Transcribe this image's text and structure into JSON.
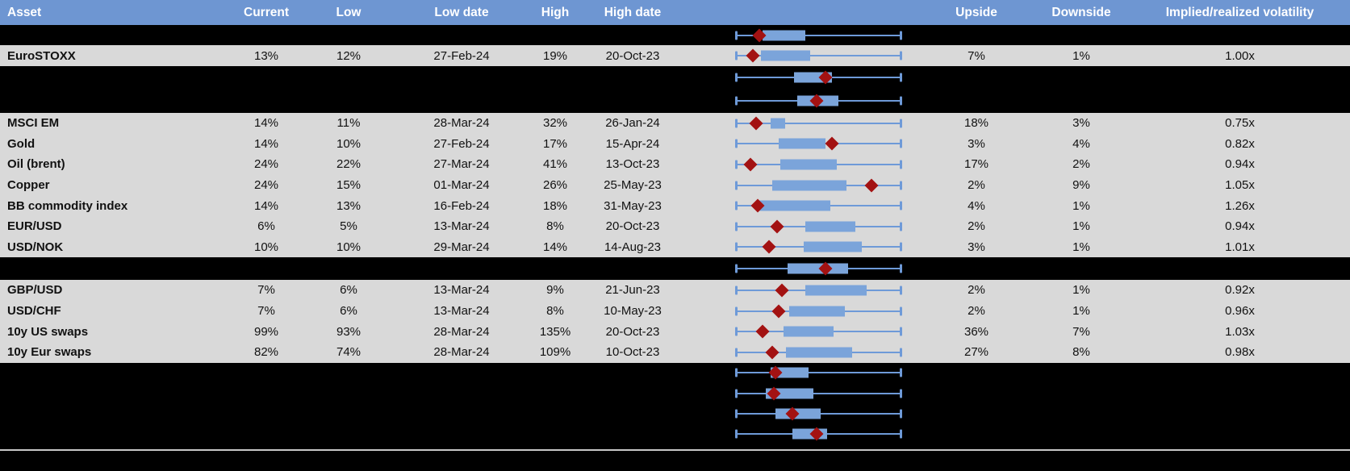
{
  "table": {
    "columns": [
      "Asset",
      "Current",
      "Low",
      "Low date",
      "High",
      "High date",
      "",
      "Upside",
      "Downside",
      "Implied/realized volatility"
    ],
    "box_plot_scale": "normalized 0-1 across whisker span (1y min-max range), diamond = current level",
    "rows": [
      {
        "kind": "spacer",
        "box": {
          "lo": 0.16,
          "hi": 0.42,
          "marker": 0.14
        }
      },
      {
        "kind": "data",
        "asset": "EuroSTOXX",
        "current": "13%",
        "low": "12%",
        "low_date": "27-Feb-24",
        "high": "19%",
        "high_date": "20-Oct-23",
        "upside": "7%",
        "downside": "1%",
        "impl_real": "1.00x",
        "box": {
          "lo": 0.15,
          "hi": 0.45,
          "marker": 0.1
        }
      },
      {
        "kind": "spacer",
        "box": {
          "lo": 0.35,
          "hi": 0.58,
          "marker": 0.54
        }
      },
      {
        "kind": "spacer",
        "box": {
          "lo": 0.37,
          "hi": 0.62,
          "marker": 0.49
        }
      },
      {
        "kind": "data",
        "asset": "MSCI EM",
        "current": "14%",
        "low": "11%",
        "low_date": "28-Mar-24",
        "high": "32%",
        "high_date": "26-Jan-24",
        "upside": "18%",
        "downside": "3%",
        "impl_real": "0.75x",
        "box": {
          "lo": 0.21,
          "hi": 0.3,
          "marker": 0.12
        }
      },
      {
        "kind": "data",
        "asset": "Gold",
        "current": "14%",
        "low": "10%",
        "low_date": "27-Feb-24",
        "high": "17%",
        "high_date": "15-Apr-24",
        "upside": "3%",
        "downside": "4%",
        "impl_real": "0.82x",
        "box": {
          "lo": 0.26,
          "hi": 0.54,
          "marker": 0.58
        }
      },
      {
        "kind": "data",
        "asset": "Oil (brent)",
        "current": "24%",
        "low": "22%",
        "low_date": "27-Mar-24",
        "high": "41%",
        "high_date": "13-Oct-23",
        "upside": "17%",
        "downside": "2%",
        "impl_real": "0.94x",
        "box": {
          "lo": 0.27,
          "hi": 0.61,
          "marker": 0.09
        }
      },
      {
        "kind": "data",
        "asset": "Copper",
        "current": "24%",
        "low": "15%",
        "low_date": "01-Mar-24",
        "high": "26%",
        "high_date": "25-May-23",
        "upside": "2%",
        "downside": "9%",
        "impl_real": "1.05x",
        "box": {
          "lo": 0.22,
          "hi": 0.67,
          "marker": 0.82
        }
      },
      {
        "kind": "data",
        "asset": "BB commodity index",
        "current": "14%",
        "low": "13%",
        "low_date": "16-Feb-24",
        "high": "18%",
        "high_date": "31-May-23",
        "upside": "4%",
        "downside": "1%",
        "impl_real": "1.26x",
        "box": {
          "lo": 0.14,
          "hi": 0.57,
          "marker": 0.13
        }
      },
      {
        "kind": "data",
        "asset": "EUR/USD",
        "current": "6%",
        "low": "5%",
        "low_date": "13-Mar-24",
        "high": "8%",
        "high_date": "20-Oct-23",
        "upside": "2%",
        "downside": "1%",
        "impl_real": "0.94x",
        "box": {
          "lo": 0.42,
          "hi": 0.72,
          "marker": 0.25
        }
      },
      {
        "kind": "data",
        "asset": "USD/NOK",
        "current": "10%",
        "low": "10%",
        "low_date": "29-Mar-24",
        "high": "14%",
        "high_date": "14-Aug-23",
        "upside": "3%",
        "downside": "1%",
        "impl_real": "1.01x",
        "box": {
          "lo": 0.41,
          "hi": 0.76,
          "marker": 0.2
        }
      },
      {
        "kind": "spacer",
        "box": {
          "lo": 0.31,
          "hi": 0.68,
          "marker": 0.54
        }
      },
      {
        "kind": "data",
        "asset": "GBP/USD",
        "current": "7%",
        "low": "6%",
        "low_date": "13-Mar-24",
        "high": "9%",
        "high_date": "21-Jun-23",
        "upside": "2%",
        "downside": "1%",
        "impl_real": "0.92x",
        "box": {
          "lo": 0.42,
          "hi": 0.79,
          "marker": 0.28
        }
      },
      {
        "kind": "data",
        "asset": "USD/CHF",
        "current": "7%",
        "low": "6%",
        "low_date": "13-Mar-24",
        "high": "8%",
        "high_date": "10-May-23",
        "upside": "2%",
        "downside": "1%",
        "impl_real": "0.96x",
        "box": {
          "lo": 0.32,
          "hi": 0.66,
          "marker": 0.26
        }
      },
      {
        "kind": "data",
        "asset": "10y US swaps",
        "current": "99%",
        "low": "93%",
        "low_date": "28-Mar-24",
        "high": "135%",
        "high_date": "20-Oct-23",
        "upside": "36%",
        "downside": "7%",
        "impl_real": "1.03x",
        "box": {
          "lo": 0.29,
          "hi": 0.59,
          "marker": 0.16
        }
      },
      {
        "kind": "data",
        "asset": "10y Eur swaps",
        "current": "82%",
        "low": "74%",
        "low_date": "28-Mar-24",
        "high": "109%",
        "high_date": "10-Oct-23",
        "upside": "27%",
        "downside": "8%",
        "impl_real": "0.98x",
        "box": {
          "lo": 0.3,
          "hi": 0.7,
          "marker": 0.22
        }
      },
      {
        "kind": "spacer",
        "box": {
          "lo": 0.21,
          "hi": 0.44,
          "marker": 0.24
        }
      },
      {
        "kind": "spacer",
        "box": {
          "lo": 0.18,
          "hi": 0.47,
          "marker": 0.23
        }
      },
      {
        "kind": "spacer",
        "box": {
          "lo": 0.24,
          "hi": 0.51,
          "marker": 0.34
        }
      },
      {
        "kind": "spacer",
        "box": {
          "lo": 0.34,
          "hi": 0.55,
          "marker": 0.49
        }
      }
    ]
  },
  "colors": {
    "header_bg": "#6e96d2",
    "header_text": "#ffffff",
    "row_bg": "#d9d9d9",
    "spacer_bg": "#000000",
    "whisker_blue": "#6e9ad8",
    "box_blue": "#7ba4da",
    "diamond_red": "#a31212",
    "bottom_divider": "#c8c8c8"
  }
}
